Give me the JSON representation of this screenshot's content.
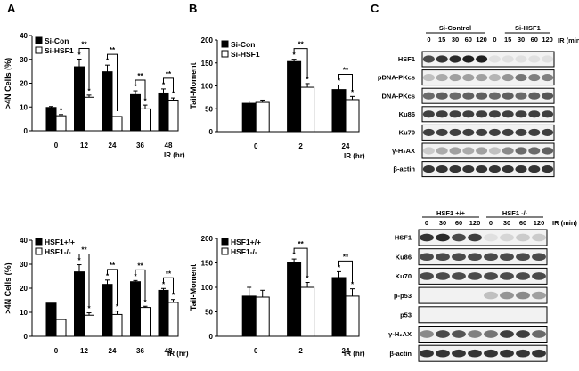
{
  "panels": {
    "A": "A",
    "B": "B",
    "C": "C"
  },
  "chart_data": [
    {
      "id": "chartA1",
      "type": "bar",
      "categories": [
        "0",
        "12",
        "24",
        "36",
        "48"
      ],
      "xlabel": "IR (hr)",
      "ylabel": ">4N Cells (%)",
      "ylim": [
        0,
        40
      ],
      "yticks": [
        0,
        10,
        20,
        30,
        40
      ],
      "legend_position": "top-left",
      "series": [
        {
          "name": "Si-Con",
          "fill": "#000000",
          "values": [
            9.8,
            26.9,
            24.8,
            15.2,
            15.9
          ],
          "errors": [
            0.4,
            3.2,
            2.8,
            1.6,
            1.7
          ]
        },
        {
          "name": "Si-HSF1",
          "fill": "#ffffff",
          "values": [
            6.3,
            14.1,
            6.0,
            9.2,
            12.9
          ],
          "errors": [
            0.5,
            0.9,
            0.0,
            1.6,
            0.9
          ]
        }
      ],
      "annotations": [
        {
          "category": 0,
          "series": 1,
          "text": "*"
        },
        {
          "category": 1,
          "series": 0,
          "text": "*"
        },
        {
          "category": 1,
          "series": 1,
          "text": "*"
        },
        {
          "category": 2,
          "series": 0,
          "text": "*"
        },
        {
          "category": 3,
          "series": 0,
          "text": "*"
        },
        {
          "category": 3,
          "series": 1,
          "text": "*"
        },
        {
          "category": 4,
          "series": 0,
          "text": "*"
        },
        {
          "category": 4,
          "series": 1,
          "text": "*"
        }
      ],
      "brackets": [
        {
          "category": 1,
          "text": "**"
        },
        {
          "category": 2,
          "text": "**"
        },
        {
          "category": 3,
          "text": "**"
        },
        {
          "category": 4,
          "text": "**"
        }
      ]
    },
    {
      "id": "chartB1",
      "type": "bar",
      "categories": [
        "0",
        "2",
        "24"
      ],
      "xlabel": "IR (hr)",
      "ylabel": "Tail-Moment",
      "ylim": [
        0,
        200
      ],
      "yticks": [
        0,
        50,
        100,
        150,
        200
      ],
      "legend_position": "top-left",
      "series": [
        {
          "name": "Si-Con",
          "fill": "#000000",
          "values": [
            62,
            153,
            92
          ],
          "errors": [
            5,
            5,
            10
          ]
        },
        {
          "name": "Si-HSF1",
          "fill": "#ffffff",
          "values": [
            64,
            97,
            70
          ],
          "errors": [
            5,
            8,
            7
          ]
        }
      ],
      "annotations": [
        {
          "category": 1,
          "series": 0,
          "text": "*"
        },
        {
          "category": 1,
          "series": 1,
          "text": "*"
        },
        {
          "category": 2,
          "series": 0,
          "text": "*"
        },
        {
          "category": 2,
          "series": 1,
          "text": "*"
        }
      ],
      "brackets": [
        {
          "category": 1,
          "text": "**"
        },
        {
          "category": 2,
          "text": "**"
        }
      ]
    },
    {
      "id": "chartA2",
      "type": "bar",
      "categories": [
        "0",
        "12",
        "24",
        "36",
        "48"
      ],
      "xlabel": "IR (hr)",
      "ylabel": ">4N Cells (%)",
      "ylim": [
        0,
        40
      ],
      "yticks": [
        0,
        10,
        20,
        30,
        40
      ],
      "legend_position": "top-left",
      "series": [
        {
          "name": "HSF1+/+",
          "fill": "#000000",
          "values": [
            13.8,
            26.8,
            21.6,
            22.7,
            19.1
          ],
          "errors": [
            0.0,
            3.0,
            1.8,
            0.5,
            0.8
          ]
        },
        {
          "name": "HSF1-/-",
          "fill": "#ffffff",
          "values": [
            7.0,
            8.8,
            9.1,
            12.0,
            14.1
          ],
          "errors": [
            0.0,
            1.0,
            1.4,
            0.5,
            1.2
          ]
        }
      ],
      "annotations": [
        {
          "category": 1,
          "series": 0,
          "text": "*"
        },
        {
          "category": 1,
          "series": 1,
          "text": "*"
        },
        {
          "category": 2,
          "series": 0,
          "text": "*"
        },
        {
          "category": 2,
          "series": 1,
          "text": "*"
        },
        {
          "category": 3,
          "series": 0,
          "text": "*"
        },
        {
          "category": 3,
          "series": 1,
          "text": "*"
        },
        {
          "category": 4,
          "series": 0,
          "text": "*"
        },
        {
          "category": 4,
          "series": 1,
          "text": "*"
        }
      ],
      "brackets": [
        {
          "category": 1,
          "text": "**"
        },
        {
          "category": 2,
          "text": "**"
        },
        {
          "category": 3,
          "text": "**"
        },
        {
          "category": 4,
          "text": "**"
        }
      ]
    },
    {
      "id": "chartB2",
      "type": "bar",
      "categories": [
        "0",
        "2",
        "24"
      ],
      "xlabel": "IR (hr)",
      "ylabel": "Tail-Moment",
      "ylim": [
        0,
        200
      ],
      "yticks": [
        0,
        50,
        100,
        150,
        200
      ],
      "legend_position": "top-left",
      "series": [
        {
          "name": "HSF1+/+",
          "fill": "#000000",
          "values": [
            82,
            150,
            120
          ],
          "errors": [
            18,
            8,
            12
          ]
        },
        {
          "name": "HSF1-/-",
          "fill": "#ffffff",
          "values": [
            80,
            100,
            82
          ],
          "errors": [
            14,
            10,
            15
          ]
        }
      ],
      "annotations": [
        {
          "category": 1,
          "series": 0,
          "text": "*"
        },
        {
          "category": 1,
          "series": 1,
          "text": "*"
        },
        {
          "category": 2,
          "series": 0,
          "text": "*"
        },
        {
          "category": 2,
          "series": 1,
          "text": "*"
        }
      ],
      "brackets": [
        {
          "category": 1,
          "text": "**"
        },
        {
          "category": 2,
          "text": "**"
        }
      ]
    }
  ],
  "blots": [
    {
      "id": "blotTop",
      "groups": [
        {
          "label": "Si-Control",
          "lanes": [
            0,
            5
          ]
        },
        {
          "label": "Si-HSF1",
          "lanes": [
            6,
            11
          ]
        }
      ],
      "lanes": [
        "0",
        "15",
        "30",
        "60",
        "120",
        "0",
        "15",
        "30",
        "60",
        "120"
      ],
      "lane_unit": "IR (min)",
      "rows": [
        {
          "label": "HSF1",
          "intensity": [
            0.75,
            0.85,
            0.9,
            0.95,
            0.95,
            0.05,
            0.05,
            0.05,
            0.05,
            0.05
          ]
        },
        {
          "label": "pDNA-PKcs",
          "intensity": [
            0.2,
            0.3,
            0.35,
            0.35,
            0.35,
            0.25,
            0.4,
            0.55,
            0.5,
            0.5
          ]
        },
        {
          "label": "DNA-PKcs",
          "intensity": [
            0.6,
            0.65,
            0.6,
            0.65,
            0.65,
            0.6,
            0.65,
            0.6,
            0.65,
            0.7
          ]
        },
        {
          "label": "Ku86",
          "intensity": [
            0.8,
            0.8,
            0.8,
            0.8,
            0.8,
            0.8,
            0.8,
            0.8,
            0.8,
            0.8
          ]
        },
        {
          "label": "Ku70",
          "intensity": [
            0.8,
            0.8,
            0.8,
            0.8,
            0.8,
            0.8,
            0.8,
            0.8,
            0.8,
            0.8
          ]
        },
        {
          "label": "γ-H₂AX",
          "intensity": [
            0.15,
            0.3,
            0.35,
            0.3,
            0.35,
            0.2,
            0.45,
            0.6,
            0.6,
            0.65
          ]
        },
        {
          "label": "β-actin",
          "intensity": [
            0.85,
            0.85,
            0.85,
            0.85,
            0.85,
            0.85,
            0.85,
            0.85,
            0.85,
            0.85
          ]
        }
      ]
    },
    {
      "id": "blotBottom",
      "groups": [
        {
          "label": "HSF1 +/+",
          "lanes": [
            0,
            4
          ]
        },
        {
          "label": "HSF1 -/-",
          "lanes": [
            4,
            8
          ]
        }
      ],
      "lanes": [
        "0",
        "30",
        "60",
        "120",
        "0",
        "30",
        "60",
        "120"
      ],
      "lane_unit": "IR (min)",
      "rows": [
        {
          "label": "HSF1",
          "intensity": [
            0.85,
            0.9,
            0.75,
            0.8,
            0.05,
            0.1,
            0.15,
            0.15
          ]
        },
        {
          "label": "Ku86",
          "intensity": [
            0.75,
            0.75,
            0.75,
            0.75,
            0.75,
            0.75,
            0.75,
            0.75
          ]
        },
        {
          "label": "Ku70",
          "intensity": [
            0.75,
            0.75,
            0.75,
            0.75,
            0.75,
            0.75,
            0.75,
            0.75
          ]
        },
        {
          "label": "p-p53",
          "intensity": [
            0.0,
            0.0,
            0.0,
            0.0,
            0.2,
            0.4,
            0.45,
            0.35
          ]
        },
        {
          "label": "p53",
          "intensity": [
            0.0,
            0.0,
            0.0,
            0.0,
            0.0,
            0.0,
            0.0,
            0.0
          ]
        },
        {
          "label": "γ-H₂AX",
          "intensity": [
            0.45,
            0.75,
            0.7,
            0.5,
            0.55,
            0.8,
            0.8,
            0.6
          ]
        },
        {
          "label": "β-actin",
          "intensity": [
            0.85,
            0.85,
            0.85,
            0.85,
            0.85,
            0.85,
            0.85,
            0.85
          ]
        }
      ]
    }
  ]
}
